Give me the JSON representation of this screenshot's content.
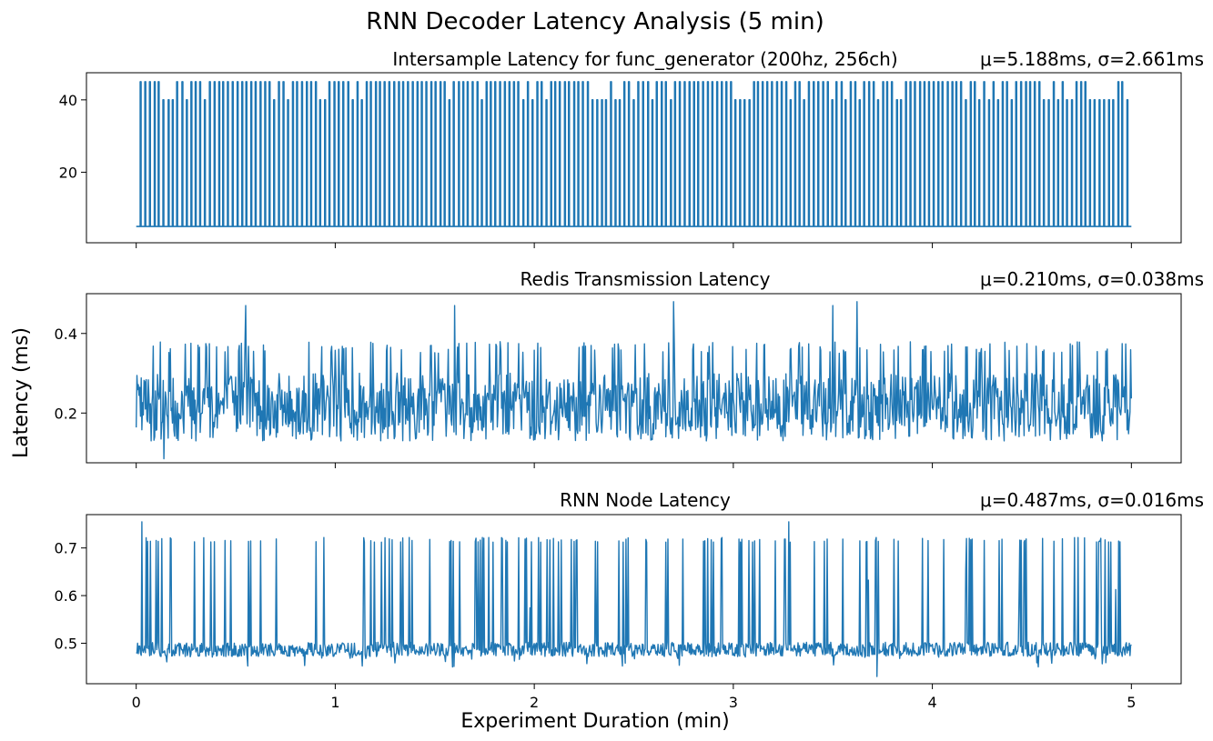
{
  "figure": {
    "title": "RNN Decoder Latency Analysis (5 min)",
    "xlabel": "Experiment Duration (min)",
    "ylabel": "Latency (ms)",
    "line_color": "#1f77b4"
  },
  "chart_data": [
    {
      "type": "line",
      "title": "Intersample Latency for func_generator (200hz, 256ch)",
      "stat": "μ=5.188ms, σ=2.661ms",
      "xlim": [
        -0.25,
        5.25
      ],
      "ylim": [
        0.5,
        47.5
      ],
      "xticks": [],
      "yticks": [
        20,
        40
      ],
      "baseline": 5,
      "spike_high": 45,
      "spike_alt": 40,
      "spike_count": 215
    },
    {
      "type": "line",
      "title": "Redis Transmission Latency",
      "stat": "μ=0.210ms, σ=0.038ms",
      "xlim": [
        -0.25,
        5.25
      ],
      "ylim": [
        0.075,
        0.5
      ],
      "xticks": [],
      "yticks": [
        0.2,
        0.4
      ],
      "band_low": 0.13,
      "band_high": 0.3,
      "spike_peak": 0.38,
      "outliers": [
        {
          "x": 0.55,
          "y": 0.47
        },
        {
          "x": 1.6,
          "y": 0.47
        },
        {
          "x": 2.7,
          "y": 0.48
        },
        {
          "x": 3.5,
          "y": 0.47
        },
        {
          "x": 3.62,
          "y": 0.48
        },
        {
          "x": 0.14,
          "y": 0.085
        }
      ]
    },
    {
      "type": "line",
      "title": "RNN Node Latency",
      "stat": "μ=0.487ms, σ=0.016ms",
      "xlim": [
        -0.25,
        5.25
      ],
      "ylim": [
        0.415,
        0.77
      ],
      "xticks": [
        "0",
        "1",
        "2",
        "3",
        "4",
        "5"
      ],
      "yticks": [
        0.5,
        0.6,
        0.7
      ],
      "baseline": 0.487,
      "spike_peak": 0.722,
      "outliers": [
        {
          "x": 0.03,
          "y": 0.755
        },
        {
          "x": 3.28,
          "y": 0.755
        },
        {
          "x": 3.72,
          "y": 0.43
        }
      ]
    }
  ]
}
